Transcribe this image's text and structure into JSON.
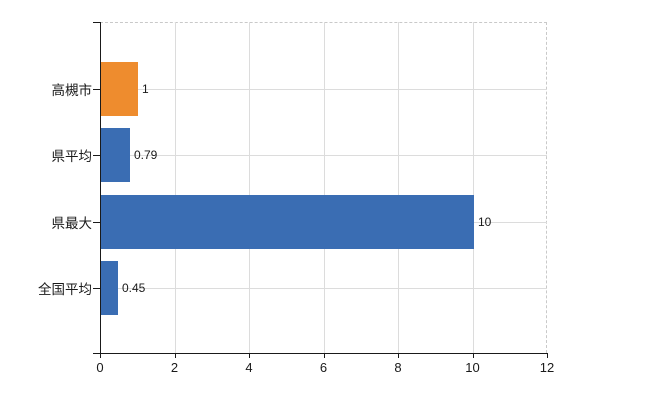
{
  "chart": {
    "title": "",
    "background_color": "#ffffff",
    "axis_color": "#1a1a1a",
    "gridline_color": "#dcdcdc",
    "plot_border_color": "#c9c9c9",
    "text_color": "#1a1a1a"
  },
  "chart_data": {
    "type": "bar",
    "orientation": "horizontal",
    "title": "",
    "xlabel": "",
    "ylabel": "",
    "categories": [
      "高槻市",
      "県平均",
      "県最大",
      "全国平均"
    ],
    "values": [
      1,
      0.79,
      10,
      0.45
    ],
    "value_labels": [
      "1",
      "0.79",
      "10",
      "0.45"
    ],
    "bar_colors": [
      "#EE8C2E",
      "#3A6DB3",
      "#3A6DB3",
      "#3A6DB3"
    ],
    "x_ticks": [
      0,
      2,
      4,
      6,
      8,
      10,
      12
    ],
    "x_tick_labels": [
      "0",
      "2",
      "4",
      "6",
      "8",
      "10",
      "12"
    ],
    "xlim": [
      0,
      12
    ],
    "grid": true,
    "legend_position": "none"
  }
}
